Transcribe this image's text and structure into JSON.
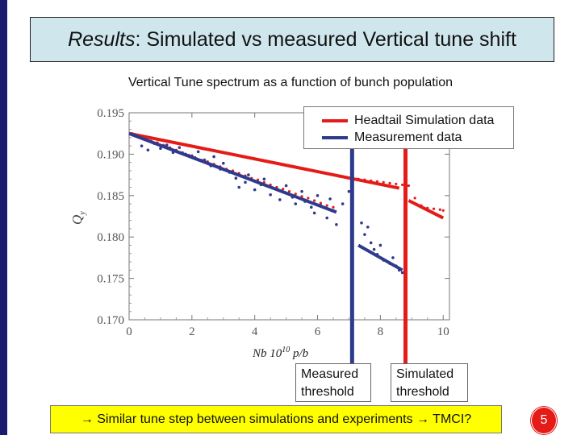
{
  "slide": {
    "title_italic": "Results",
    "title_rest": " : Simulated vs measured Vertical tune shift",
    "subtitle": "Vertical Tune spectrum as a function of bunch population",
    "footer_arrow": "→",
    "footer_text": " Similar tune step between simulations and experiments ",
    "footer_arrow2": "→",
    "footer_end": " TMCI?",
    "page_number": "5"
  },
  "callouts": {
    "measured": [
      "Measured",
      "threshold"
    ],
    "simulated": [
      "Simulated",
      "threshold"
    ]
  },
  "colors": {
    "simulation": "#e41b17",
    "measurement": "#2e3a8c",
    "title_bg": "#cfe6ec",
    "footer_bg": "#ffff00",
    "accent": "#1a1a6e"
  },
  "chart_data": {
    "type": "scatter",
    "xlabel": "Nb 10",
    "xlabel_sup": "10",
    "xlabel_unit": " p/b",
    "ylabel": "Q",
    "ylabel_sub": "y",
    "xlim": [
      0,
      10.2
    ],
    "ylim": [
      0.17,
      0.195
    ],
    "xticks": [
      "0",
      "2",
      "4",
      "6",
      "8",
      "10"
    ],
    "yticks": [
      "0.170",
      "0.175",
      "0.180",
      "0.185",
      "0.190",
      "0.195"
    ],
    "legend_position": "top-right",
    "series": [
      {
        "name": "Headtail Simulation data",
        "color": "#e41b17",
        "points": [
          [
            0.1,
            0.1925
          ],
          [
            0.3,
            0.1922
          ],
          [
            0.5,
            0.1919
          ],
          [
            0.7,
            0.1916
          ],
          [
            0.9,
            0.1914
          ],
          [
            1.1,
            0.1911
          ],
          [
            1.3,
            0.1908
          ],
          [
            1.5,
            0.1905
          ],
          [
            1.7,
            0.1902
          ],
          [
            1.9,
            0.1899
          ],
          [
            2.1,
            0.1896
          ],
          [
            2.3,
            0.1893
          ],
          [
            2.5,
            0.1891
          ],
          [
            2.7,
            0.1888
          ],
          [
            2.9,
            0.1885
          ],
          [
            3.1,
            0.1882
          ],
          [
            3.3,
            0.188
          ],
          [
            3.5,
            0.1877
          ],
          [
            3.7,
            0.1874
          ],
          [
            3.9,
            0.1871
          ],
          [
            4.1,
            0.1869
          ],
          [
            4.3,
            0.1866
          ],
          [
            4.5,
            0.1863
          ],
          [
            4.7,
            0.186
          ],
          [
            4.9,
            0.1858
          ],
          [
            5.1,
            0.1855
          ],
          [
            5.3,
            0.1852
          ],
          [
            5.5,
            0.1849
          ],
          [
            5.7,
            0.1847
          ],
          [
            5.9,
            0.1844
          ],
          [
            6.1,
            0.1841
          ],
          [
            6.3,
            0.1838
          ],
          [
            6.5,
            0.1836
          ],
          [
            6.7,
            0.1873
          ],
          [
            6.9,
            0.1872
          ],
          [
            7.1,
            0.1871
          ],
          [
            7.3,
            0.187
          ],
          [
            7.5,
            0.1869
          ],
          [
            7.7,
            0.1868
          ],
          [
            7.9,
            0.1867
          ],
          [
            8.1,
            0.1866
          ],
          [
            8.3,
            0.1865
          ],
          [
            8.5,
            0.1864
          ],
          [
            8.7,
            0.1863
          ],
          [
            8.9,
            0.1862
          ],
          [
            9.1,
            0.1847
          ],
          [
            9.3,
            0.1838
          ],
          [
            9.5,
            0.1835
          ],
          [
            9.7,
            0.1834
          ],
          [
            9.9,
            0.1833
          ],
          [
            10.0,
            0.1832
          ]
        ],
        "fit_segments": [
          [
            [
              0.0,
              0.1925
            ],
            [
              8.6,
              0.1859
            ]
          ],
          [
            [
              8.9,
              0.1844
            ],
            [
              10.0,
              0.1823
            ]
          ]
        ]
      },
      {
        "name": "Measurement data",
        "color": "#2e3a8c",
        "points": [
          [
            0.4,
            0.191
          ],
          [
            0.6,
            0.1905
          ],
          [
            0.8,
            0.1913
          ],
          [
            1.0,
            0.1907
          ],
          [
            1.2,
            0.1911
          ],
          [
            1.4,
            0.1902
          ],
          [
            1.6,
            0.1908
          ],
          [
            1.8,
            0.19
          ],
          [
            2.0,
            0.1898
          ],
          [
            2.2,
            0.1903
          ],
          [
            2.4,
            0.1893
          ],
          [
            2.6,
            0.1886
          ],
          [
            2.7,
            0.1897
          ],
          [
            2.9,
            0.1882
          ],
          [
            3.0,
            0.1889
          ],
          [
            3.2,
            0.1878
          ],
          [
            3.4,
            0.1871
          ],
          [
            3.5,
            0.186
          ],
          [
            3.7,
            0.1866
          ],
          [
            3.8,
            0.1875
          ],
          [
            4.0,
            0.1857
          ],
          [
            4.2,
            0.1863
          ],
          [
            4.3,
            0.187
          ],
          [
            4.5,
            0.1851
          ],
          [
            4.7,
            0.1858
          ],
          [
            4.8,
            0.1845
          ],
          [
            5.0,
            0.1862
          ],
          [
            5.2,
            0.1848
          ],
          [
            5.3,
            0.184
          ],
          [
            5.5,
            0.1855
          ],
          [
            5.6,
            0.1843
          ],
          [
            5.8,
            0.1836
          ],
          [
            5.9,
            0.1829
          ],
          [
            6.0,
            0.185
          ],
          [
            6.1,
            0.1838
          ],
          [
            6.3,
            0.1823
          ],
          [
            6.4,
            0.1846
          ],
          [
            6.5,
            0.1832
          ],
          [
            6.6,
            0.1815
          ],
          [
            6.8,
            0.184
          ],
          [
            7.0,
            0.1855
          ],
          [
            7.1,
            0.1848
          ],
          [
            7.4,
            0.1817
          ],
          [
            7.5,
            0.1803
          ],
          [
            7.6,
            0.1812
          ],
          [
            7.7,
            0.1793
          ],
          [
            7.8,
            0.1785
          ],
          [
            7.9,
            0.1779
          ],
          [
            8.0,
            0.179
          ],
          [
            8.1,
            0.1772
          ],
          [
            8.3,
            0.1768
          ],
          [
            8.4,
            0.1775
          ],
          [
            8.5,
            0.1765
          ],
          [
            8.6,
            0.176
          ],
          [
            8.7,
            0.1757
          ],
          [
            8.8,
            0.177
          ]
        ],
        "fit_segments": [
          [
            [
              0.0,
              0.1925
            ],
            [
              6.6,
              0.183
            ]
          ],
          [
            [
              7.3,
              0.179
            ],
            [
              8.7,
              0.176
            ]
          ]
        ]
      }
    ],
    "thresholds": [
      {
        "name": "Measured threshold",
        "x": 7.1,
        "color": "#2e3a8c"
      },
      {
        "name": "Simulated threshold",
        "x": 8.8,
        "color": "#e41b17"
      }
    ]
  }
}
